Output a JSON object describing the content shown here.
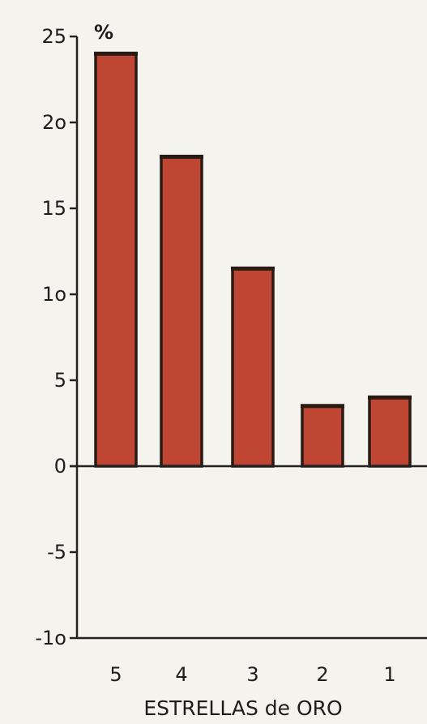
{
  "chart_data": {
    "type": "bar",
    "categories": [
      "5",
      "4",
      "3",
      "2",
      "1"
    ],
    "values": [
      24,
      18,
      11.5,
      3.5,
      4
    ],
    "ylabel": "%",
    "xlabel": "ESTRELLAS de ORO",
    "ylim": [
      -10,
      25
    ],
    "yticks": [
      25,
      20,
      15,
      10,
      5,
      0,
      -5,
      -10
    ],
    "ytick_labels": [
      "25",
      "2o",
      "15",
      "1o",
      "5",
      "0",
      "-5",
      "-1o"
    ],
    "grid": false,
    "legend": "none",
    "colors": {
      "bar": "#bf4632",
      "bar_outline": "#2a1a14",
      "axis": "#222222",
      "background": "#f4f3ee"
    }
  }
}
